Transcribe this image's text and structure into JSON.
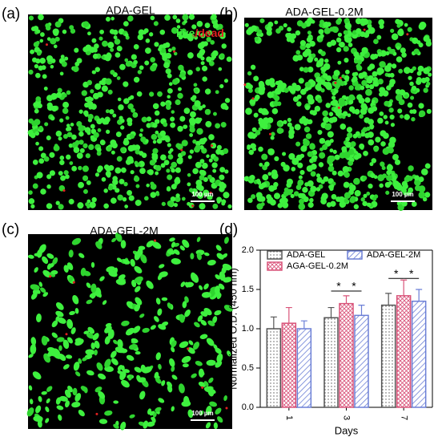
{
  "panels": [
    {
      "label": "(a)",
      "title": "ADA-GEL",
      "scale_bar": "100 µm",
      "legend_live": "live",
      "legend_dead": "/dead"
    },
    {
      "label": "(b)",
      "title": "ADA-GEL-0.2M",
      "scale_bar": "100 µm"
    },
    {
      "label": "(c)",
      "title": "ADA-GEL-2M",
      "scale_bar": "100 µm"
    }
  ],
  "chart_data": {
    "type": "bar",
    "panel_label": "(d)",
    "x_label": "Days",
    "y_label": "Normalized O.D. (450 nm)",
    "categories": [
      "1",
      "3",
      "7"
    ],
    "series": [
      {
        "name": "ADA-GEL",
        "color": "#555555",
        "values": [
          1.0,
          1.14,
          1.3
        ],
        "errors": [
          0.15,
          0.13,
          0.15
        ]
      },
      {
        "name": "AGA-GEL-0.2M",
        "color": "#d9547a",
        "values": [
          1.07,
          1.32,
          1.42
        ],
        "errors": [
          0.2,
          0.1,
          0.2
        ]
      },
      {
        "name": "ADA-GEL-2M",
        "color": "#6b7fd6",
        "values": [
          1.0,
          1.17,
          1.35
        ],
        "errors": [
          0.1,
          0.13,
          0.15
        ]
      }
    ],
    "ylim": [
      0,
      2.0
    ],
    "yticks": [
      {
        "value": 0,
        "label": "0.0"
      },
      {
        "value": 0.5,
        "label": "0.5"
      },
      {
        "value": 1.0,
        "label": "1.0"
      },
      {
        "value": 1.5,
        "label": "1.5"
      },
      {
        "value": 2.0,
        "label": "2.0"
      }
    ],
    "annotations": [
      "*",
      "*",
      "*",
      "*"
    ]
  }
}
